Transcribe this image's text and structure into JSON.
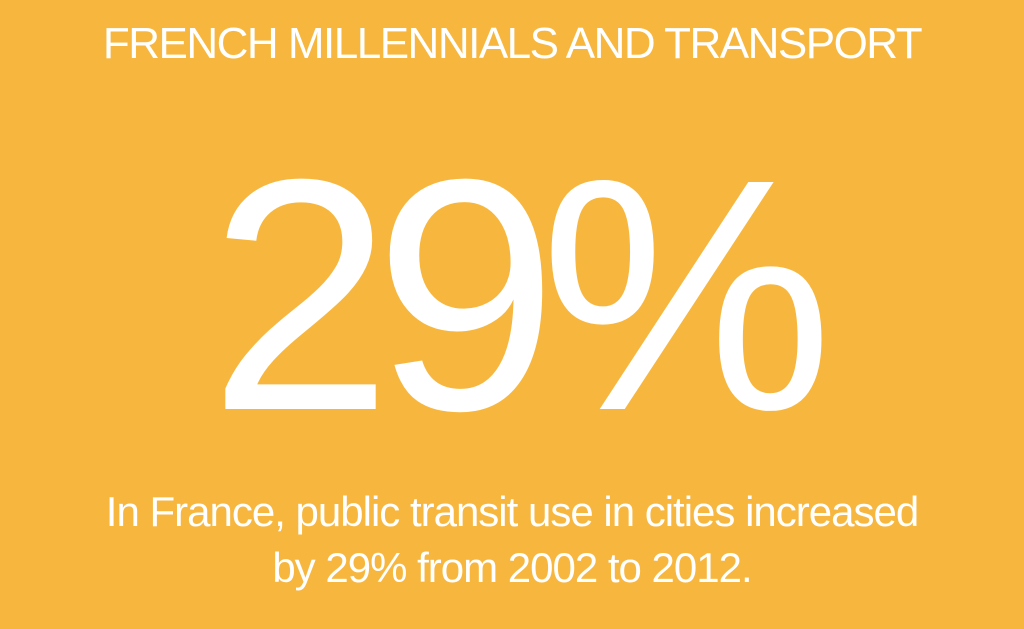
{
  "title": "FRENCH MILLENNIALS AND TRANSPORT",
  "stat": "29%",
  "caption": {
    "line1": "In France, public transit use in cities increased",
    "line2": "by 29% from 2002 to 2012."
  },
  "colors": {
    "background": "#F7B73F",
    "text": "#FFFFFF"
  }
}
